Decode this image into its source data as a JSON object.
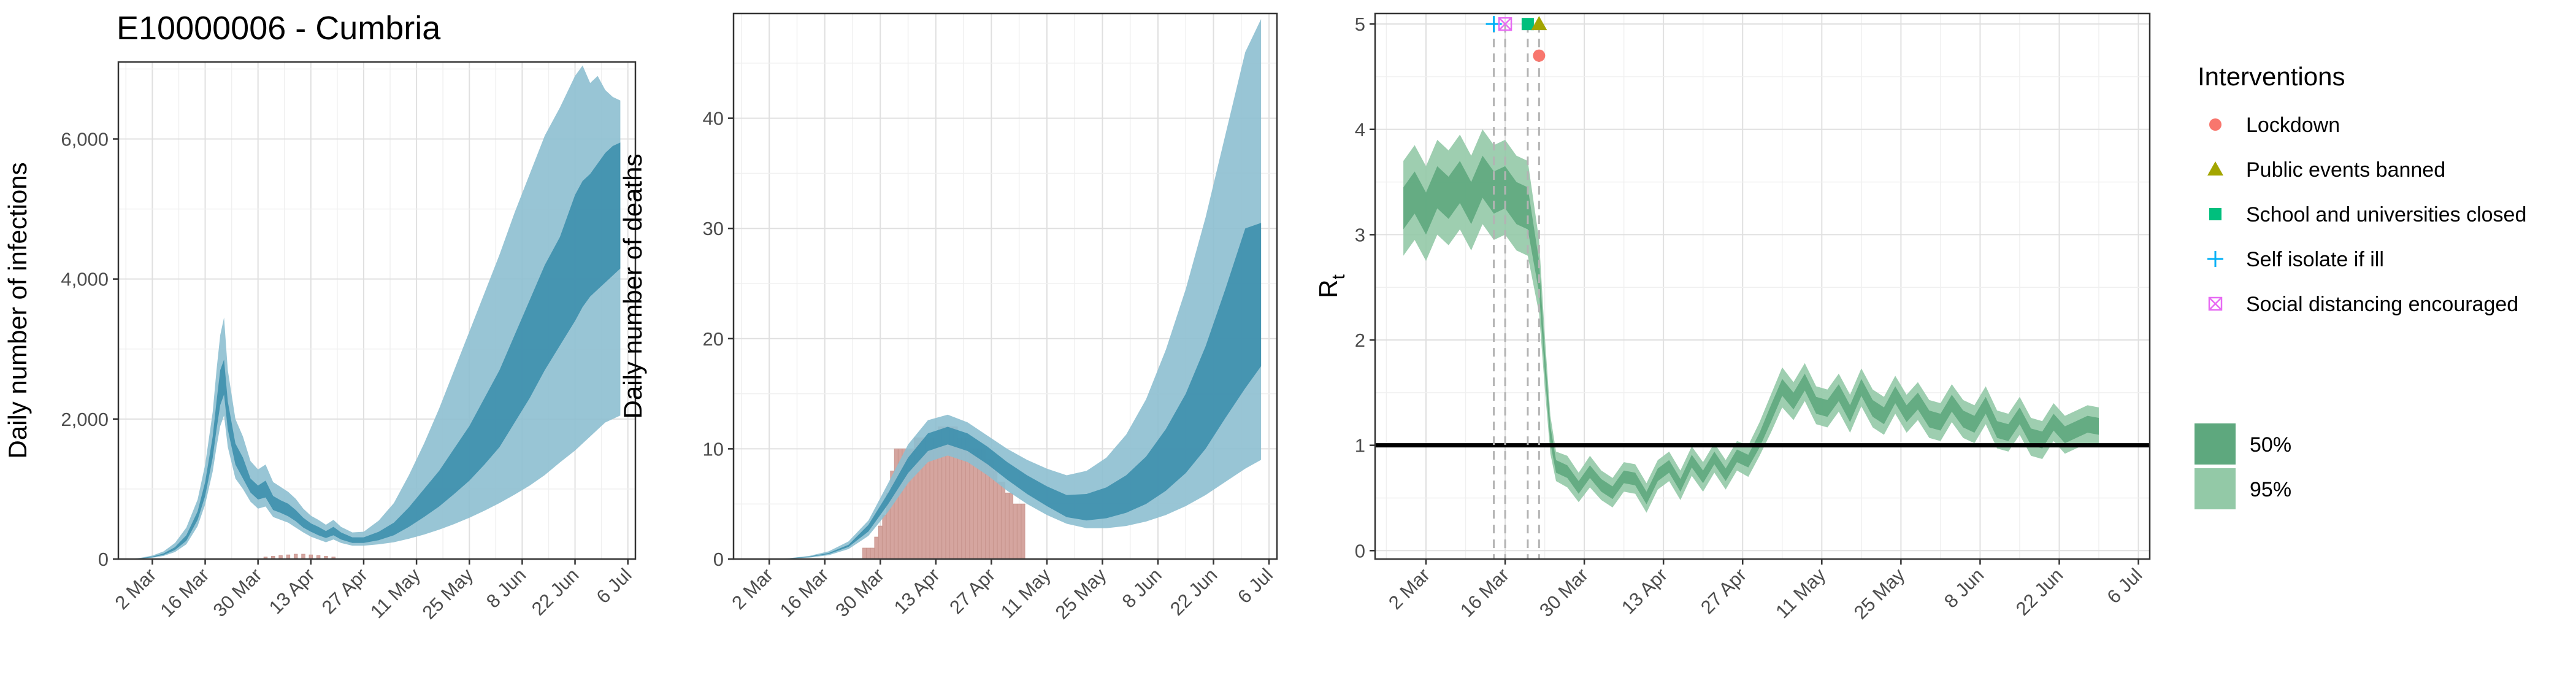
{
  "title": "E10000006 - Cumbria",
  "colors": {
    "infections_band_95": "#8dbfd0",
    "infections_band_50": "#3d8fad",
    "observed_bars": "#d5a59f",
    "rt_band_95": "#93c9a7",
    "rt_band_50": "#5ea87e",
    "rt_reference_line": "#000000",
    "lockdown": "#f8766d",
    "public_events_banned": "#a3a500",
    "schools_closed": "#00bf7d",
    "self_isolate": "#00b0f6",
    "social_distancing": "#e76bf3"
  },
  "chart_data": [
    {
      "type": "area",
      "name": "infections",
      "xlabel": "",
      "ylabel": "Daily number of infections",
      "x_ticks": [
        "2 Mar",
        "16 Mar",
        "30 Mar",
        "13 Apr",
        "27 Apr",
        "11 May",
        "25 May",
        "8 Jun",
        "22 Jun",
        "6 Jul"
      ],
      "y_ticks": [
        "0",
        "2,000",
        "4,000",
        "6,000"
      ],
      "xlim_days_from_2_Mar": [
        -9,
        128
      ],
      "ylim": [
        0,
        7100
      ],
      "grid": true,
      "x_day_from_2_Mar": [
        -6,
        -3,
        0,
        3,
        6,
        9,
        12,
        14,
        16,
        17,
        18,
        19,
        20,
        22,
        24,
        26,
        28,
        30,
        32,
        34,
        36,
        38,
        40,
        42,
        44,
        46,
        48,
        50,
        53,
        56,
        60,
        64,
        68,
        72,
        76,
        80,
        84,
        88,
        92,
        96,
        100,
        104,
        108,
        112,
        114,
        116,
        118,
        120,
        122,
        124
      ],
      "median": [
        0,
        10,
        30,
        70,
        150,
        300,
        620,
        1000,
        1600,
        2050,
        2450,
        2600,
        2050,
        1500,
        1300,
        1050,
        950,
        1000,
        800,
        750,
        700,
        620,
        520,
        450,
        400,
        350,
        400,
        330,
        270,
        270,
        330,
        430,
        600,
        800,
        1000,
        1250,
        1500,
        1800,
        2100,
        2500,
        2900,
        3350,
        3800,
        4300,
        4500,
        4700,
        4850,
        5000,
        5200,
        5450
      ],
      "band_50_low": [
        0,
        8,
        25,
        60,
        130,
        260,
        560,
        900,
        1450,
        1850,
        2200,
        2350,
        1850,
        1350,
        1150,
        950,
        850,
        880,
        700,
        660,
        610,
        540,
        450,
        390,
        340,
        300,
        340,
        280,
        230,
        230,
        270,
        340,
        460,
        600,
        750,
        930,
        1120,
        1350,
        1600,
        1950,
        2300,
        2700,
        3050,
        3400,
        3600,
        3750,
        3850,
        3950,
        4050,
        4150
      ],
      "band_50_high": [
        0,
        12,
        35,
        80,
        170,
        340,
        680,
        1100,
        1750,
        2250,
        2700,
        2850,
        2250,
        1650,
        1450,
        1150,
        1050,
        1120,
        900,
        840,
        790,
        700,
        590,
        510,
        460,
        400,
        460,
        380,
        310,
        310,
        390,
        520,
        740,
        1000,
        1260,
        1580,
        1900,
        2300,
        2700,
        3200,
        3700,
        4200,
        4600,
        5200,
        5400,
        5500,
        5650,
        5800,
        5900,
        5950
      ],
      "band_95_low": [
        0,
        5,
        18,
        45,
        100,
        210,
        470,
        780,
        1250,
        1600,
        1900,
        2050,
        1600,
        1150,
        1000,
        820,
        720,
        750,
        600,
        560,
        520,
        450,
        380,
        320,
        280,
        240,
        280,
        230,
        190,
        190,
        210,
        240,
        290,
        350,
        420,
        500,
        590,
        690,
        800,
        920,
        1050,
        1200,
        1380,
        1550,
        1650,
        1750,
        1850,
        1950,
        2000,
        2050
      ],
      "band_95_high": [
        0,
        18,
        50,
        110,
        230,
        450,
        850,
        1350,
        2100,
        2700,
        3200,
        3450,
        2700,
        2000,
        1750,
        1400,
        1280,
        1350,
        1100,
        1030,
        960,
        860,
        720,
        620,
        560,
        490,
        560,
        460,
        380,
        390,
        550,
        800,
        1200,
        1650,
        2150,
        2700,
        3250,
        3800,
        4350,
        4950,
        5500,
        6050,
        6450,
        6900,
        7050,
        6800,
        6900,
        6700,
        6600,
        6550
      ],
      "observed_x_day_from_2_Mar": [
        30,
        32,
        34,
        36,
        38,
        40,
        42,
        44,
        46,
        48
      ],
      "observed_values": [
        30,
        40,
        50,
        60,
        70,
        70,
        60,
        50,
        40,
        30
      ]
    },
    {
      "type": "area",
      "name": "deaths",
      "xlabel": "",
      "ylabel": "Daily number of deaths",
      "x_ticks": [
        "2 Mar",
        "16 Mar",
        "30 Mar",
        "13 Apr",
        "27 Apr",
        "11 May",
        "25 May",
        "8 Jun",
        "22 Jun",
        "6 Jul"
      ],
      "y_ticks": [
        "0",
        "10",
        "20",
        "30",
        "40"
      ],
      "xlim_days_from_2_Mar": [
        -9,
        128
      ],
      "ylim": [
        0,
        49.5
      ],
      "grid": true,
      "x_day_from_2_Mar": [
        -3,
        0,
        5,
        10,
        15,
        20,
        25,
        30,
        35,
        40,
        45,
        50,
        55,
        60,
        65,
        70,
        75,
        80,
        85,
        90,
        95,
        100,
        105,
        110,
        115,
        120,
        124
      ],
      "median": [
        0,
        0,
        0.05,
        0.2,
        0.5,
        1.2,
        2.8,
        5.5,
        8.5,
        10.6,
        11.2,
        10.6,
        9.4,
        8,
        6.8,
        5.8,
        4.8,
        4.8,
        5.2,
        6,
        7.3,
        9.2,
        11.7,
        15,
        19.5,
        24.5,
        29
      ],
      "band_50_low": [
        0,
        0,
        0.04,
        0.18,
        0.45,
        1.1,
        2.5,
        5,
        7.8,
        9.8,
        10.4,
        9.8,
        8.6,
        7.2,
        5.9,
        4.8,
        3.8,
        3.5,
        3.7,
        4.2,
        5,
        6.2,
        7.8,
        10,
        12.8,
        15.5,
        17.5
      ],
      "band_50_high": [
        0,
        0,
        0.06,
        0.22,
        0.55,
        1.3,
        3.1,
        6,
        9.2,
        11.4,
        12,
        11.4,
        10.2,
        8.8,
        7.6,
        6.6,
        5.8,
        5.9,
        6.5,
        7.6,
        9.3,
        11.8,
        15,
        19.3,
        24.5,
        30,
        30.5
      ],
      "band_95_low": [
        0,
        0,
        0.03,
        0.12,
        0.35,
        0.9,
        2.1,
        4.3,
        6.9,
        8.8,
        9.4,
        8.8,
        7.6,
        6.2,
        5,
        4,
        3.2,
        2.8,
        2.8,
        3,
        3.4,
        4,
        4.8,
        5.8,
        7,
        8.2,
        9
      ],
      "band_95_high": [
        0,
        0,
        0.08,
        0.28,
        0.7,
        1.6,
        3.5,
        6.9,
        10.4,
        12.6,
        13.1,
        12.4,
        11.2,
        10,
        9,
        8.2,
        7.6,
        8,
        9.2,
        11.3,
        14.5,
        19,
        24.5,
        31,
        38.5,
        46,
        49
      ],
      "observed_x_day_from_2_Mar": [
        24,
        25,
        26,
        27,
        28,
        29,
        30,
        31,
        32,
        33,
        34,
        35,
        36,
        37,
        38,
        39,
        40,
        41,
        42,
        43,
        44,
        45,
        46,
        47,
        48,
        49,
        50,
        51,
        52,
        53,
        54,
        55,
        56,
        57,
        58,
        59,
        60,
        61,
        62,
        63,
        64
      ],
      "observed_values": [
        1,
        1,
        1,
        2,
        3,
        4,
        6,
        8,
        10,
        10,
        10,
        10,
        10,
        11,
        11,
        11,
        11,
        11,
        11,
        12,
        12,
        12,
        12,
        12,
        11,
        11,
        11,
        10,
        10,
        10,
        10,
        9,
        9,
        8,
        7,
        7,
        6,
        6,
        5,
        5,
        5
      ]
    },
    {
      "type": "area",
      "name": "reproduction_number",
      "xlabel": "",
      "ylabel": "R",
      "ylabel_subscript": "t",
      "x_ticks": [
        "2 Mar",
        "16 Mar",
        "30 Mar",
        "13 Apr",
        "27 Apr",
        "11 May",
        "25 May",
        "8 Jun",
        "22 Jun",
        "6 Jul"
      ],
      "y_ticks": [
        "0",
        "1",
        "2",
        "3",
        "4",
        "5"
      ],
      "xlim_days_from_2_Mar": [
        -9,
        128
      ],
      "ylim": [
        -0.08,
        5.1
      ],
      "grid": true,
      "reference_line_y": 1,
      "x_day_from_2_Mar": [
        -4,
        -2,
        0,
        2,
        4,
        6,
        8,
        10,
        12,
        14,
        16,
        18,
        20,
        21,
        22,
        23,
        25,
        27,
        29,
        31,
        33,
        35,
        37,
        39,
        41,
        43,
        45,
        47,
        49,
        51,
        53,
        55,
        57,
        59,
        61,
        63,
        65,
        67,
        69,
        71,
        73,
        75,
        77,
        79,
        81,
        83,
        85,
        87,
        89,
        91,
        93,
        95,
        97,
        99,
        101,
        103,
        105,
        107,
        109,
        111,
        113,
        115,
        117,
        119
      ],
      "median": [
        3.25,
        3.4,
        3.2,
        3.45,
        3.35,
        3.5,
        3.3,
        3.55,
        3.4,
        3.45,
        3.3,
        3.25,
        2.6,
        1.8,
        1.1,
        0.8,
        0.75,
        0.6,
        0.75,
        0.62,
        0.55,
        0.7,
        0.68,
        0.5,
        0.72,
        0.8,
        0.62,
        0.85,
        0.7,
        0.88,
        0.72,
        0.9,
        0.85,
        1.05,
        1.3,
        1.55,
        1.42,
        1.6,
        1.38,
        1.35,
        1.5,
        1.3,
        1.55,
        1.35,
        1.28,
        1.48,
        1.3,
        1.42,
        1.25,
        1.22,
        1.4,
        1.25,
        1.2,
        1.38,
        1.15,
        1.12,
        1.28,
        1.08,
        1.05,
        1.22,
        1.1,
        1.15,
        1.2,
        1.18
      ],
      "band_50_low": [
        3.05,
        3.2,
        3.0,
        3.25,
        3.15,
        3.3,
        3.1,
        3.35,
        3.2,
        3.25,
        3.1,
        3.05,
        2.45,
        1.7,
        1.02,
        0.74,
        0.69,
        0.54,
        0.69,
        0.56,
        0.49,
        0.64,
        0.62,
        0.44,
        0.66,
        0.74,
        0.56,
        0.79,
        0.64,
        0.82,
        0.66,
        0.84,
        0.79,
        0.98,
        1.22,
        1.47,
        1.34,
        1.52,
        1.3,
        1.27,
        1.42,
        1.22,
        1.47,
        1.27,
        1.2,
        1.4,
        1.22,
        1.34,
        1.17,
        1.14,
        1.32,
        1.17,
        1.12,
        1.3,
        1.07,
        1.04,
        1.2,
        1.0,
        0.97,
        1.14,
        1.02,
        1.07,
        1.12,
        1.1
      ],
      "band_50_high": [
        3.45,
        3.6,
        3.4,
        3.65,
        3.55,
        3.7,
        3.5,
        3.75,
        3.6,
        3.65,
        3.5,
        3.45,
        2.75,
        1.9,
        1.18,
        0.86,
        0.81,
        0.66,
        0.81,
        0.68,
        0.61,
        0.76,
        0.74,
        0.56,
        0.78,
        0.86,
        0.68,
        0.91,
        0.76,
        0.94,
        0.78,
        0.96,
        0.91,
        1.12,
        1.38,
        1.63,
        1.5,
        1.68,
        1.46,
        1.43,
        1.58,
        1.38,
        1.63,
        1.43,
        1.36,
        1.56,
        1.38,
        1.5,
        1.33,
        1.3,
        1.48,
        1.33,
        1.28,
        1.46,
        1.23,
        1.2,
        1.36,
        1.16,
        1.13,
        1.3,
        1.18,
        1.23,
        1.28,
        1.26
      ],
      "band_95_low": [
        2.8,
        2.95,
        2.75,
        3.0,
        2.9,
        3.05,
        2.85,
        3.1,
        2.95,
        3.0,
        2.85,
        2.8,
        2.25,
        1.55,
        0.92,
        0.66,
        0.6,
        0.46,
        0.6,
        0.48,
        0.41,
        0.56,
        0.54,
        0.36,
        0.58,
        0.66,
        0.48,
        0.71,
        0.56,
        0.74,
        0.58,
        0.76,
        0.7,
        0.9,
        1.12,
        1.36,
        1.24,
        1.42,
        1.2,
        1.17,
        1.32,
        1.12,
        1.37,
        1.17,
        1.1,
        1.3,
        1.12,
        1.24,
        1.07,
        1.04,
        1.22,
        1.07,
        1.02,
        1.2,
        0.97,
        0.94,
        1.1,
        0.9,
        0.87,
        1.04,
        0.92,
        0.97,
        1.02,
        1.0
      ],
      "band_95_high": [
        3.7,
        3.85,
        3.65,
        3.9,
        3.8,
        3.95,
        3.75,
        4.0,
        3.85,
        3.9,
        3.75,
        3.7,
        2.95,
        2.05,
        1.28,
        0.94,
        0.9,
        0.74,
        0.9,
        0.76,
        0.69,
        0.84,
        0.82,
        0.64,
        0.86,
        0.94,
        0.76,
        0.99,
        0.84,
        1.02,
        0.86,
        1.04,
        1.0,
        1.22,
        1.48,
        1.74,
        1.6,
        1.78,
        1.56,
        1.53,
        1.68,
        1.48,
        1.73,
        1.53,
        1.46,
        1.66,
        1.48,
        1.6,
        1.43,
        1.4,
        1.58,
        1.43,
        1.38,
        1.56,
        1.33,
        1.3,
        1.46,
        1.26,
        1.23,
        1.4,
        1.28,
        1.33,
        1.38,
        1.36
      ],
      "interventions": [
        {
          "label": "Self isolate if ill",
          "day_from_2_Mar": 12,
          "y": 5.0,
          "shape": "plus",
          "color": "#00b0f6"
        },
        {
          "label": "Social distancing encouraged",
          "day_from_2_Mar": 14,
          "y": 5.0,
          "shape": "square-x",
          "color": "#e76bf3"
        },
        {
          "label": "School and universities closed",
          "day_from_2_Mar": 18,
          "y": 5.0,
          "shape": "square",
          "color": "#00bf7d"
        },
        {
          "label": "Public events banned",
          "day_from_2_Mar": 20,
          "y": 5.0,
          "shape": "triangle",
          "color": "#a3a500"
        },
        {
          "label": "Lockdown",
          "day_from_2_Mar": 20,
          "y": 4.7,
          "shape": "circle",
          "color": "#f8766d"
        }
      ]
    }
  ],
  "legend": {
    "interventions_title": "Interventions",
    "interventions": [
      {
        "label": "Lockdown",
        "shape": "circle",
        "color": "#f8766d"
      },
      {
        "label": "Public events banned",
        "shape": "triangle",
        "color": "#a3a500"
      },
      {
        "label": "School and universities closed",
        "shape": "square",
        "color": "#00bf7d"
      },
      {
        "label": "Self isolate if ill",
        "shape": "plus",
        "color": "#00b0f6"
      },
      {
        "label": "Social distancing encouraged",
        "shape": "square-x",
        "color": "#e76bf3"
      }
    ],
    "bands": [
      {
        "label": "50%",
        "color": "#5ea87e"
      },
      {
        "label": "95%",
        "color": "#93c9a7"
      }
    ]
  }
}
